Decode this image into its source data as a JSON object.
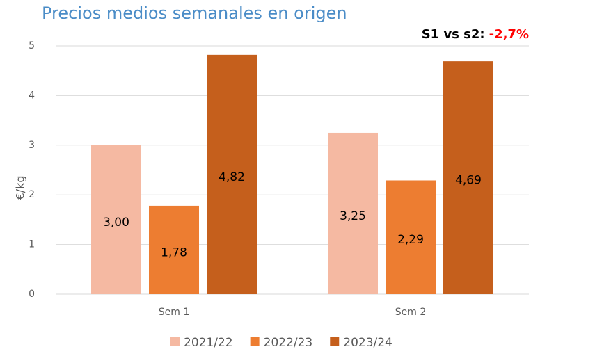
{
  "chart_data": {
    "type": "bar",
    "title": "Precios medios semanales en origen",
    "annotation": {
      "text": "S1 vs s2:",
      "highlight": "-2,7%"
    },
    "y_label": "€/kg",
    "categories": [
      "Sem 1",
      "Sem 2"
    ],
    "series": [
      {
        "name": "2021/22",
        "color": "#f5b9a2",
        "values": [
          3.0,
          3.25
        ],
        "value_labels": [
          "3,00",
          "3,25"
        ]
      },
      {
        "name": "2022/23",
        "color": "#ed7d31",
        "values": [
          1.78,
          2.29
        ],
        "value_labels": [
          "1,78",
          "2,29"
        ]
      },
      {
        "name": "2023/24",
        "color": "#c55f1c",
        "values": [
          4.82,
          4.69
        ],
        "value_labels": [
          "4,82",
          "4,69"
        ]
      }
    ],
    "ylim": [
      0,
      5
    ],
    "yticks": [
      0,
      1,
      2,
      3,
      4,
      5
    ],
    "grid": true,
    "legend": "bottom"
  }
}
